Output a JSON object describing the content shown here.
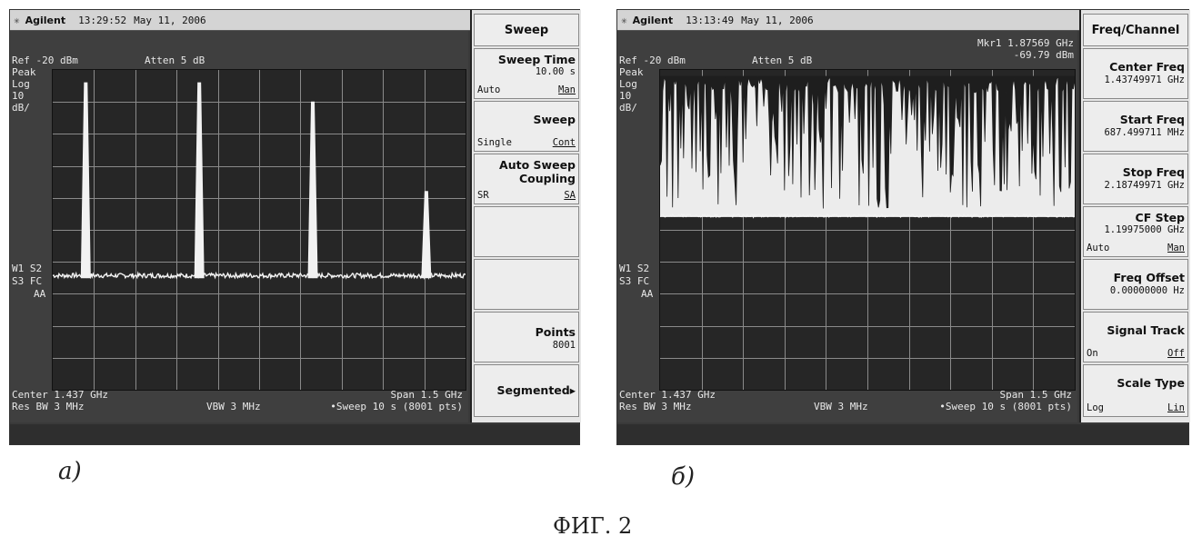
{
  "screen_a": {
    "brand": "Agilent",
    "time": "13:29:52",
    "date": "May 11, 2006",
    "ref": "Ref -20 dBm",
    "atten": "Atten 5 dB",
    "left_labels": [
      "Peak",
      "Log",
      "10",
      "dB/"
    ],
    "trace_labels": [
      "W1  S2",
      "S3  FC",
      "AA"
    ],
    "center": "Center 1.437 GHz",
    "span": "Span 1.5 GHz",
    "res_bw": "Res BW 3 MHz",
    "vbw": "VBW 3 MHz",
    "sweep": "•Sweep 10 s (8001 pts)",
    "softkeys": {
      "title": "Sweep",
      "sweep_time": {
        "label": "Sweep Time",
        "value": "10.00 s",
        "opt_left": "Auto",
        "opt_right": "Man"
      },
      "sweep": {
        "label": "Sweep",
        "opt_left": "Single",
        "opt_right": "Cont"
      },
      "auto_sweep": {
        "label1": "Auto Sweep",
        "label2": "Coupling",
        "opt_left": "SR",
        "opt_right": "SA"
      },
      "points": {
        "label": "Points",
        "value": "8001"
      },
      "segmented": {
        "label": "Segmented▸"
      }
    },
    "chart_data": {
      "type": "line",
      "x_unit": "GHz",
      "x_range": [
        0.687,
        2.187
      ],
      "y_range": [
        -120,
        -20
      ],
      "noise_floor_db": -85,
      "peaks_x_fraction": [
        0.08,
        0.355,
        0.63,
        0.905
      ],
      "peaks_level_db": [
        -24,
        -24,
        -30,
        -58
      ]
    }
  },
  "screen_b": {
    "brand": "Agilent",
    "time": "13:13:49",
    "date": "May 11, 2006",
    "marker": "Mkr1  1.87569 GHz",
    "marker_level": "-69.79 dBm",
    "ref": "Ref -20 dBm",
    "atten": "Atten 5 dB",
    "left_labels": [
      "Peak",
      "Log",
      "10",
      "dB/"
    ],
    "trace_labels": [
      "W1  S2",
      "S3  FC",
      "AA"
    ],
    "center": "Center 1.437 GHz",
    "span": "Span 1.5 GHz",
    "res_bw": "Res BW 3 MHz",
    "vbw": "VBW 3 MHz",
    "sweep": "•Sweep 10 s (8001 pts)",
    "softkeys": {
      "title": "Freq/Channel",
      "center_freq": {
        "label": "Center Freq",
        "value": "1.43749971 GHz"
      },
      "start_freq": {
        "label": "Start Freq",
        "value": "687.499711 MHz"
      },
      "stop_freq": {
        "label": "Stop Freq",
        "value": "2.18749971 GHz"
      },
      "cf_step": {
        "label": "CF Step",
        "value": "1.19975000 GHz",
        "opt_left": "Auto",
        "opt_right": "Man"
      },
      "freq_offset": {
        "label": "Freq Offset",
        "value": "0.00000000  Hz"
      },
      "signal_track": {
        "label": "Signal Track",
        "opt_left": "On",
        "opt_right": "Off"
      },
      "scale_type": {
        "label": "Scale Type",
        "opt_left": "Log",
        "opt_right": "Lin"
      }
    },
    "chart_data": {
      "type": "line",
      "x_unit": "GHz",
      "x_range": [
        0.687,
        2.187
      ],
      "y_range": [
        -120,
        -20
      ],
      "noise_floor_db": -66,
      "dense_signal_top_db": -22
    }
  },
  "captions": {
    "a": "а)",
    "b": "б)",
    "figure": "ФИГ. 2"
  }
}
